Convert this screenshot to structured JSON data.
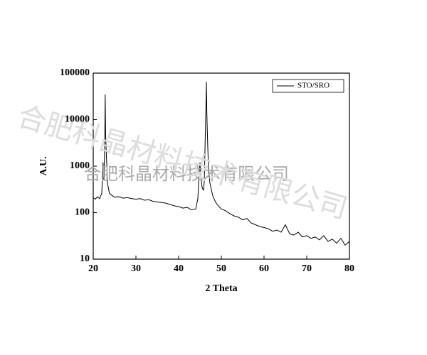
{
  "chart_data": {
    "type": "line",
    "x_label": "2 Theta",
    "y_label": "A.U.",
    "series": [
      {
        "name": "STO/SRO",
        "color": "#000000",
        "x": [
          20,
          20.5,
          21,
          21.5,
          22,
          22.3,
          22.5,
          22.7,
          22.8,
          22.9,
          23.1,
          23.4,
          23.8,
          24.5,
          25,
          26,
          27,
          28,
          29,
          30,
          31,
          32,
          33,
          34,
          35,
          36,
          37,
          38,
          39,
          40,
          41,
          42,
          43,
          44,
          44.5,
          44.8,
          45,
          45.2,
          45.5,
          45.8,
          46,
          46.2,
          46.4,
          46.5,
          46.6,
          46.8,
          47,
          47.3,
          47.7,
          48,
          48.5,
          49,
          50,
          51,
          52,
          53,
          54,
          55,
          56,
          57,
          58,
          59,
          60,
          61,
          62,
          63,
          64,
          65,
          66,
          67,
          68,
          69,
          70,
          71,
          72,
          73,
          74,
          75,
          76,
          77,
          78,
          79,
          80
        ],
        "values": [
          210,
          195,
          220,
          200,
          260,
          1200,
          500,
          3000,
          35000,
          5000,
          1500,
          400,
          260,
          230,
          215,
          220,
          205,
          210,
          200,
          195,
          200,
          185,
          190,
          175,
          170,
          165,
          160,
          150,
          140,
          135,
          125,
          130,
          115,
          120,
          200,
          700,
          1200,
          600,
          350,
          300,
          450,
          3000,
          20000,
          65000,
          15000,
          3000,
          900,
          450,
          300,
          230,
          180,
          150,
          120,
          110,
          95,
          85,
          80,
          70,
          75,
          60,
          55,
          50,
          48,
          45,
          40,
          42,
          38,
          55,
          35,
          33,
          38,
          30,
          32,
          28,
          30,
          26,
          32,
          24,
          27,
          22,
          28,
          20,
          24
        ]
      }
    ],
    "xlim": [
      20,
      80
    ],
    "xticks": [
      20,
      30,
      40,
      50,
      60,
      70,
      80
    ],
    "ylim": [
      10,
      100000
    ],
    "yticks": [
      10,
      100,
      1000,
      10000,
      100000
    ],
    "y_scale": "log",
    "legend": "upper right"
  },
  "watermarks": [
    "合肥科晶材料技术有限公司",
    "合肥科晶材料技术有限公司"
  ]
}
